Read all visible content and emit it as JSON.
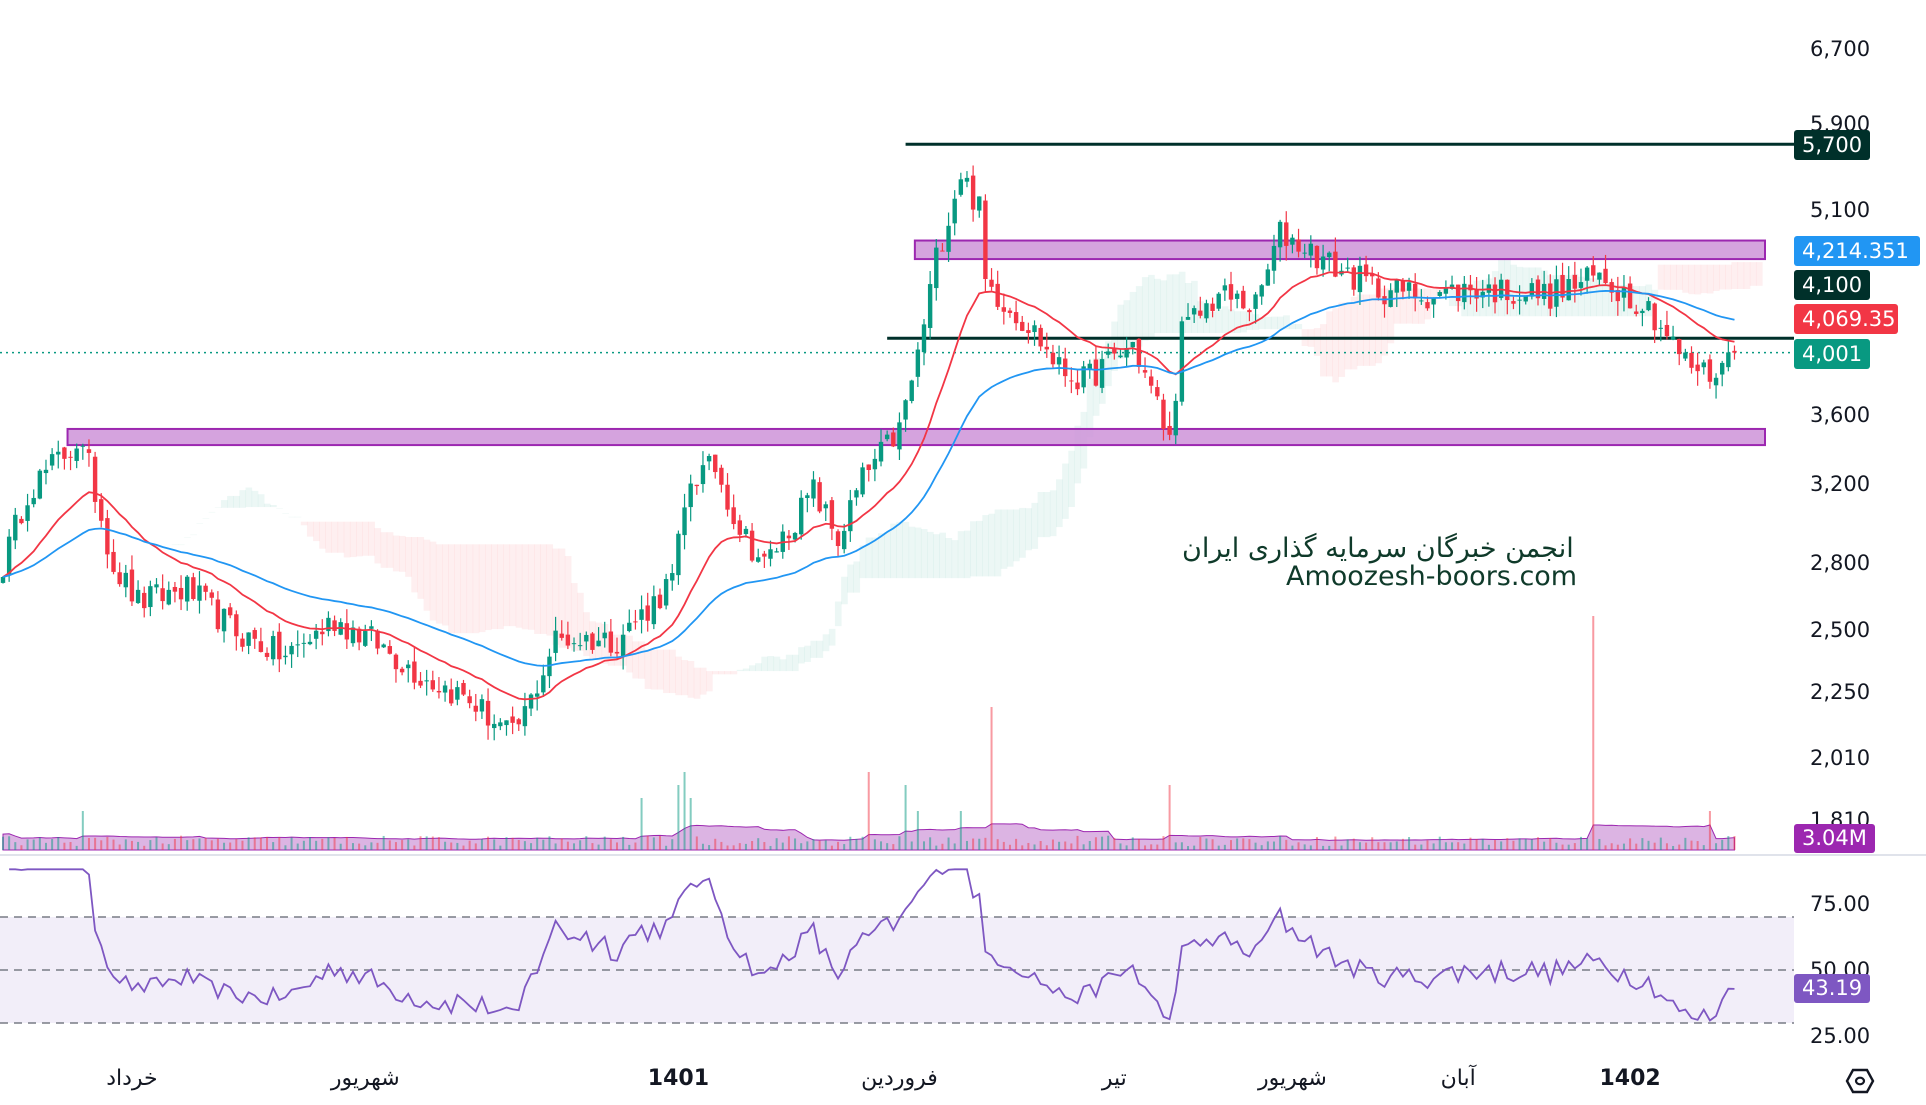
{
  "chart_data": {
    "type": "candlestick",
    "title": "",
    "scale": "log",
    "ylim": [
      1750,
      7000
    ],
    "price_ticks": [
      "6,700",
      "5,900",
      "5,100",
      "3,600",
      "3,200",
      "2,800",
      "2,500",
      "2,250",
      "2,010",
      "1,810"
    ],
    "price_tick_values": [
      6700,
      5900,
      5100,
      3600,
      3200,
      2800,
      2500,
      2250,
      2010,
      1810
    ],
    "time_labels": [
      {
        "label": "خرداد",
        "bar": 21,
        "bold": false
      },
      {
        "label": "شهریور",
        "bar": 59,
        "bold": false
      },
      {
        "label": "1401",
        "bar": 110,
        "bold": true
      },
      {
        "label": "فروردین",
        "bar": 146,
        "bold": false
      },
      {
        "label": "تیر",
        "bar": 181,
        "bold": false
      },
      {
        "label": "شهریور",
        "bar": 210,
        "bold": false
      },
      {
        "label": "آبان",
        "bar": 237,
        "bold": false
      },
      {
        "label": "1402",
        "bar": 265,
        "bold": true
      }
    ],
    "close_anchors": [
      [
        0,
        2790
      ],
      [
        4,
        3165
      ],
      [
        12,
        3440
      ],
      [
        14,
        3295
      ],
      [
        18,
        2790
      ],
      [
        22,
        2620
      ],
      [
        30,
        2680
      ],
      [
        38,
        2490
      ],
      [
        46,
        2388
      ],
      [
        54,
        2542
      ],
      [
        60,
        2460
      ],
      [
        68,
        2314
      ],
      [
        76,
        2218
      ],
      [
        83,
        2084
      ],
      [
        86,
        2218
      ],
      [
        90,
        2460
      ],
      [
        100,
        2460
      ],
      [
        106,
        2620
      ],
      [
        109,
        2720
      ],
      [
        112,
        3230
      ],
      [
        116,
        3295
      ],
      [
        120,
        2970
      ],
      [
        124,
        2790
      ],
      [
        128,
        2970
      ],
      [
        132,
        3165
      ],
      [
        136,
        2910
      ],
      [
        140,
        3230
      ],
      [
        146,
        3508
      ],
      [
        149,
        3980
      ],
      [
        152,
        4700
      ],
      [
        156,
        5435
      ],
      [
        159,
        5105
      ],
      [
        160,
        4510
      ],
      [
        164,
        4325
      ],
      [
        168,
        4145
      ],
      [
        172,
        3896
      ],
      [
        176,
        3815
      ],
      [
        184,
        4060
      ],
      [
        188,
        3660
      ],
      [
        190,
        3440
      ],
      [
        192,
        4145
      ],
      [
        198,
        4415
      ],
      [
        204,
        4325
      ],
      [
        208,
        4900
      ],
      [
        212,
        4795
      ],
      [
        216,
        4650
      ],
      [
        224,
        4460
      ],
      [
        232,
        4415
      ],
      [
        240,
        4460
      ],
      [
        252,
        4415
      ],
      [
        260,
        4555
      ],
      [
        268,
        4325
      ],
      [
        274,
        3938
      ],
      [
        278,
        3853
      ],
      [
        282,
        4001
      ]
    ],
    "volume_spikes": [
      [
        13,
        3
      ],
      [
        104,
        4
      ],
      [
        110,
        5
      ],
      [
        111,
        6
      ],
      [
        112,
        4
      ],
      [
        141,
        6
      ],
      [
        147,
        5
      ],
      [
        149,
        3
      ],
      [
        156,
        3
      ],
      [
        161,
        11
      ],
      [
        190,
        5
      ],
      [
        259,
        18
      ],
      [
        278,
        3
      ]
    ],
    "horizontal_lines": [
      {
        "label": "5,700",
        "price": 5700,
        "from_bar": 147,
        "color": "#00302a"
      },
      {
        "label": "4,100",
        "price": 4100,
        "from_bar": 144,
        "color": "#00302a"
      }
    ],
    "zones": [
      {
        "top": 4840,
        "bottom": 4690,
        "from_bar": 149
      },
      {
        "top": 3515,
        "bottom": 3420,
        "from_bar": 11
      }
    ],
    "last_price_line": 4001,
    "indicators": {
      "ema_fast_color": "#f23645",
      "ema_slow_color": "#2196f3",
      "rsi_color": "#7e57c2",
      "rsi_levels": [
        70,
        50,
        30
      ],
      "rsi_ticks": [
        "75.00",
        "50.00",
        "25.00"
      ],
      "rsi_tick_values": [
        75,
        50,
        25
      ]
    }
  },
  "tags": {
    "resistance": {
      "label": "5,700",
      "color": "#00302a"
    },
    "ema_slow": {
      "label": "4,214.351",
      "color": "#2196f3"
    },
    "support": {
      "label": "4,100",
      "color": "#00302a"
    },
    "ema_fast": {
      "label": "4,069.35",
      "color": "#f23645"
    },
    "last": {
      "label": "4,001",
      "color": "#089981"
    },
    "volume": {
      "label": "3.04M",
      "color": "#9c27b0"
    },
    "rsi": {
      "label": "43.19",
      "color": "#7e57c2"
    }
  },
  "watermark": {
    "line1": "انجمن خبرگان سرمایه گذاری ایران",
    "line2": "Amoozesh-boors.com"
  },
  "colors": {
    "up": "#089981",
    "down": "#f23645",
    "zone_fill": "#ce93d8",
    "zone_border": "#9c27b0"
  }
}
